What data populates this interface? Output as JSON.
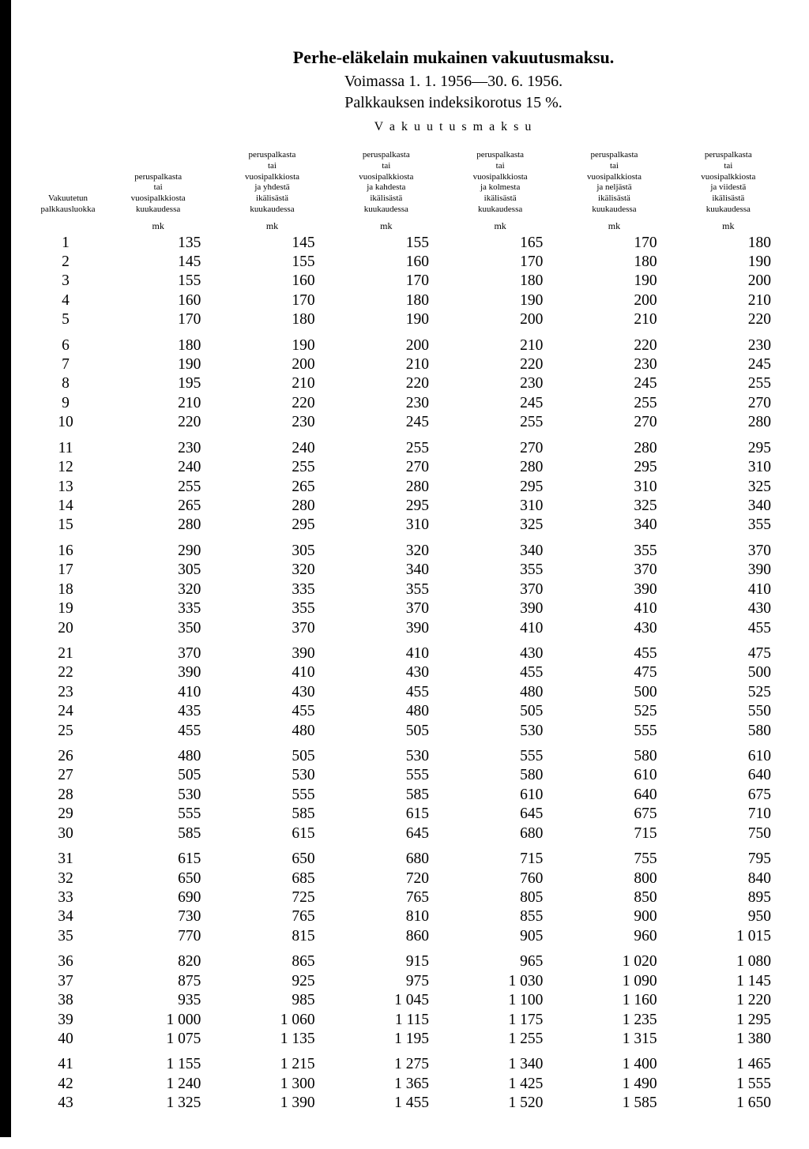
{
  "title": {
    "line1": "Perhe-eläkelain mukainen vakuutusmaksu.",
    "line2": "Voimassa 1. 1. 1956—30. 6. 1956.",
    "line3": "Palkkauksen indeksikorotus 15 %.",
    "superheader": "V a k u u t u s m a k s u"
  },
  "headers": {
    "col0": "Vakuutetun\npalkkausluokka",
    "col1": "peruspalkasta\ntai\nvuosipalkkiosta\nkuukaudessa",
    "col2": "peruspalkasta\ntai\nvuosipalkkiosta\nja yhdestä\nikälisästä\nkuukaudessa",
    "col3": "peruspalkasta\ntai\nvuosipalkkiosta\nja kahdesta\nikälisästä\nkuukaudessa",
    "col4": "peruspalkasta\ntai\nvuosipalkkiosta\nja kolmesta\nikälisästä\nkuukaudessa",
    "col5": "peruspalkasta\ntai\nvuosipalkkiosta\nja neljästä\nikälisästä\nkuukaudessa",
    "col6": "peruspalkasta\ntai\nvuosipalkkiosta\nja viidestä\nikälisästä\nkuukaudessa",
    "unit": "mk"
  },
  "groups": [
    [
      [
        "1",
        "135",
        "145",
        "155",
        "165",
        "170",
        "180"
      ],
      [
        "2",
        "145",
        "155",
        "160",
        "170",
        "180",
        "190"
      ],
      [
        "3",
        "155",
        "160",
        "170",
        "180",
        "190",
        "200"
      ],
      [
        "4",
        "160",
        "170",
        "180",
        "190",
        "200",
        "210"
      ],
      [
        "5",
        "170",
        "180",
        "190",
        "200",
        "210",
        "220"
      ]
    ],
    [
      [
        "6",
        "180",
        "190",
        "200",
        "210",
        "220",
        "230"
      ],
      [
        "7",
        "190",
        "200",
        "210",
        "220",
        "230",
        "245"
      ],
      [
        "8",
        "195",
        "210",
        "220",
        "230",
        "245",
        "255"
      ],
      [
        "9",
        "210",
        "220",
        "230",
        "245",
        "255",
        "270"
      ],
      [
        "10",
        "220",
        "230",
        "245",
        "255",
        "270",
        "280"
      ]
    ],
    [
      [
        "11",
        "230",
        "240",
        "255",
        "270",
        "280",
        "295"
      ],
      [
        "12",
        "240",
        "255",
        "270",
        "280",
        "295",
        "310"
      ],
      [
        "13",
        "255",
        "265",
        "280",
        "295",
        "310",
        "325"
      ],
      [
        "14",
        "265",
        "280",
        "295",
        "310",
        "325",
        "340"
      ],
      [
        "15",
        "280",
        "295",
        "310",
        "325",
        "340",
        "355"
      ]
    ],
    [
      [
        "16",
        "290",
        "305",
        "320",
        "340",
        "355",
        "370"
      ],
      [
        "17",
        "305",
        "320",
        "340",
        "355",
        "370",
        "390"
      ],
      [
        "18",
        "320",
        "335",
        "355",
        "370",
        "390",
        "410"
      ],
      [
        "19",
        "335",
        "355",
        "370",
        "390",
        "410",
        "430"
      ],
      [
        "20",
        "350",
        "370",
        "390",
        "410",
        "430",
        "455"
      ]
    ],
    [
      [
        "21",
        "370",
        "390",
        "410",
        "430",
        "455",
        "475"
      ],
      [
        "22",
        "390",
        "410",
        "430",
        "455",
        "475",
        "500"
      ],
      [
        "23",
        "410",
        "430",
        "455",
        "480",
        "500",
        "525"
      ],
      [
        "24",
        "435",
        "455",
        "480",
        "505",
        "525",
        "550"
      ],
      [
        "25",
        "455",
        "480",
        "505",
        "530",
        "555",
        "580"
      ]
    ],
    [
      [
        "26",
        "480",
        "505",
        "530",
        "555",
        "580",
        "610"
      ],
      [
        "27",
        "505",
        "530",
        "555",
        "580",
        "610",
        "640"
      ],
      [
        "28",
        "530",
        "555",
        "585",
        "610",
        "640",
        "675"
      ],
      [
        "29",
        "555",
        "585",
        "615",
        "645",
        "675",
        "710"
      ],
      [
        "30",
        "585",
        "615",
        "645",
        "680",
        "715",
        "750"
      ]
    ],
    [
      [
        "31",
        "615",
        "650",
        "680",
        "715",
        "755",
        "795"
      ],
      [
        "32",
        "650",
        "685",
        "720",
        "760",
        "800",
        "840"
      ],
      [
        "33",
        "690",
        "725",
        "765",
        "805",
        "850",
        "895"
      ],
      [
        "34",
        "730",
        "765",
        "810",
        "855",
        "900",
        "950"
      ],
      [
        "35",
        "770",
        "815",
        "860",
        "905",
        "960",
        "1 015"
      ]
    ],
    [
      [
        "36",
        "820",
        "865",
        "915",
        "965",
        "1 020",
        "1 080"
      ],
      [
        "37",
        "875",
        "925",
        "975",
        "1 030",
        "1 090",
        "1 145"
      ],
      [
        "38",
        "935",
        "985",
        "1 045",
        "1 100",
        "1 160",
        "1 220"
      ],
      [
        "39",
        "1 000",
        "1 060",
        "1 115",
        "1 175",
        "1 235",
        "1 295"
      ],
      [
        "40",
        "1 075",
        "1 135",
        "1 195",
        "1 255",
        "1 315",
        "1 380"
      ]
    ],
    [
      [
        "41",
        "1 155",
        "1 215",
        "1 275",
        "1 340",
        "1 400",
        "1 465"
      ],
      [
        "42",
        "1 240",
        "1 300",
        "1 365",
        "1 425",
        "1 490",
        "1 555"
      ],
      [
        "43",
        "1 325",
        "1 390",
        "1 455",
        "1 520",
        "1 585",
        "1 650"
      ]
    ]
  ]
}
